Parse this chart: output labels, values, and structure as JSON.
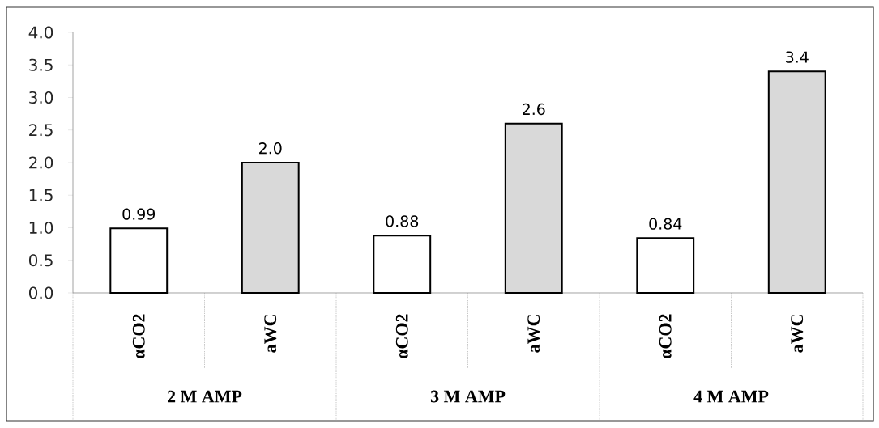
{
  "chart_data": {
    "type": "bar",
    "categories": [
      "αCO2",
      "aWC",
      "αCO2",
      "aWC",
      "αCO2",
      "aWC"
    ],
    "values": [
      0.99,
      2.0,
      0.88,
      2.6,
      0.84,
      3.4
    ],
    "value_labels": [
      "0.99",
      "2.0",
      "0.88",
      "2.6",
      "0.84",
      "3.4"
    ],
    "colors": [
      "#ffffff",
      "#d9d9d9",
      "#ffffff",
      "#d9d9d9",
      "#ffffff",
      "#d9d9d9"
    ],
    "ylim": [
      0,
      4
    ],
    "yticks": [
      {
        "value": 0,
        "label": "0.0"
      },
      {
        "value": 0.5,
        "label": "0.5"
      },
      {
        "value": 1,
        "label": "1.0"
      },
      {
        "value": 1.5,
        "label": "1.5"
      },
      {
        "value": 2,
        "label": "2.0"
      },
      {
        "value": 2.5,
        "label": "2.5"
      },
      {
        "value": 3,
        "label": "3.0"
      },
      {
        "value": 3.5,
        "label": "3.5"
      },
      {
        "value": 4,
        "label": "4.0"
      }
    ],
    "annotations": [
      "2 M AMP",
      "3 M AMP",
      "4 M AMP"
    ]
  }
}
